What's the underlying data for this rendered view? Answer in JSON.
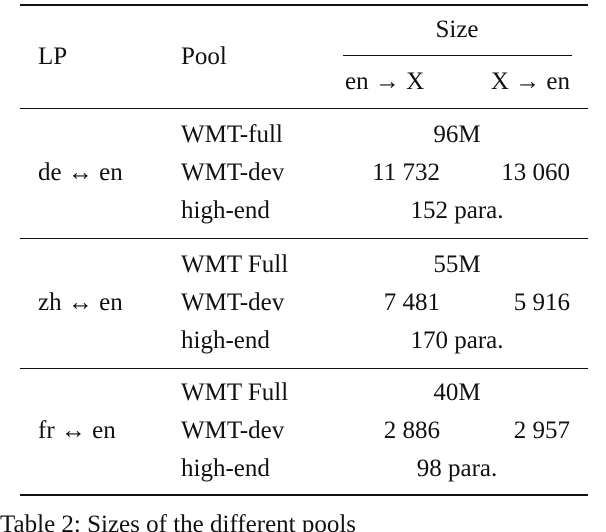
{
  "table": {
    "header": {
      "lp": "LP",
      "pool": "Pool",
      "size": "Size",
      "en_x": "en → X",
      "x_en": "X → en"
    },
    "groups": [
      {
        "lp": "de ↔ en",
        "rows": [
          [
            "WMT-full",
            "96M"
          ],
          [
            "WMT-dev",
            "11 732",
            "13 060"
          ],
          [
            "high-end",
            "152 para."
          ]
        ]
      },
      {
        "lp": "zh ↔ en",
        "rows": [
          [
            "WMT Full",
            "55M"
          ],
          [
            "WMT-dev",
            "7 481",
            "5 916"
          ],
          [
            "high-end",
            "170 para."
          ]
        ]
      },
      {
        "lp": "fr ↔ en",
        "rows": [
          [
            "WMT Full",
            "40M"
          ],
          [
            "WMT-dev",
            "2 886",
            "2 957"
          ],
          [
            "high-end",
            "98 para."
          ]
        ]
      }
    ]
  },
  "caption": "Table 2: Sizes of the different pools"
}
